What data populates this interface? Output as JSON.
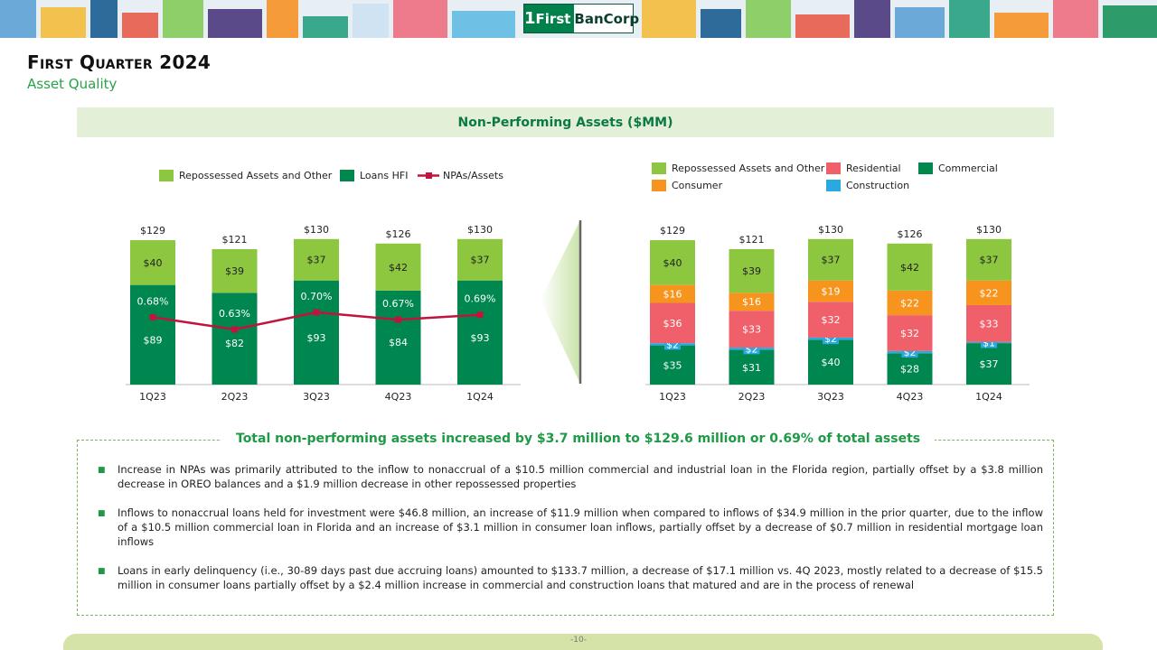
{
  "header": {
    "logo_number": "1",
    "logo_first": "First",
    "logo_bancorp": "BanCorp",
    "title": "First Quarter 2024",
    "subtitle": "Asset Quality"
  },
  "section_title": "Non-Performing Assets ($MM)",
  "colors": {
    "repossessed": "#8dc63f",
    "loans_hfi": "#00874f",
    "npa_line": "#c0143c",
    "residential": "#f0606a",
    "commercial": "#00874f",
    "consumer": "#f7941d",
    "construction": "#29a9e0",
    "accent_green": "#1e9a46"
  },
  "chart_data": [
    {
      "type": "bar",
      "stacked": true,
      "categories": [
        "1Q23",
        "2Q23",
        "3Q23",
        "4Q23",
        "1Q24"
      ],
      "series": [
        {
          "name": "Loans HFI",
          "values": [
            89,
            82,
            93,
            84,
            93
          ],
          "labels": [
            "$89",
            "$82",
            "$93",
            "$84",
            "$93"
          ]
        },
        {
          "name": "Repossessed Assets and Other",
          "values": [
            40,
            39,
            37,
            42,
            37
          ],
          "labels": [
            "$40",
            "$39",
            "$37",
            "$42",
            "$37"
          ]
        }
      ],
      "totals": [
        "$129",
        "$121",
        "$130",
        "$126",
        "$130"
      ],
      "line_series": {
        "name": "NPAs/Assets",
        "values": [
          0.68,
          0.63,
          0.7,
          0.67,
          0.69
        ],
        "labels": [
          "0.68%",
          "0.63%",
          "0.70%",
          "0.67%",
          "0.69%"
        ]
      },
      "legend": [
        "Repossessed Assets and Other",
        "Loans HFI",
        "NPAs/Assets"
      ]
    },
    {
      "type": "bar",
      "stacked": true,
      "categories": [
        "1Q23",
        "2Q23",
        "3Q23",
        "4Q23",
        "1Q24"
      ],
      "series": [
        {
          "name": "Commercial",
          "values": [
            35,
            31,
            40,
            28,
            37
          ],
          "labels": [
            "$35",
            "$31",
            "$40",
            "$28",
            "$37"
          ]
        },
        {
          "name": "Construction",
          "values": [
            2,
            2,
            2,
            2,
            1
          ],
          "labels": [
            "$2",
            "$2",
            "$2",
            "$2",
            "$1"
          ]
        },
        {
          "name": "Residential",
          "values": [
            36,
            33,
            32,
            32,
            33
          ],
          "labels": [
            "$36",
            "$33",
            "$32",
            "$32",
            "$33"
          ]
        },
        {
          "name": "Consumer",
          "values": [
            16,
            16,
            19,
            22,
            22
          ],
          "labels": [
            "$16",
            "$16",
            "$19",
            "$22",
            "$22"
          ]
        },
        {
          "name": "Repossessed Assets and Other",
          "values": [
            40,
            39,
            37,
            42,
            37
          ],
          "labels": [
            "$40",
            "$39",
            "$37",
            "$42",
            "$37"
          ]
        }
      ],
      "totals": [
        "$129",
        "$121",
        "$130",
        "$126",
        "$130"
      ],
      "legend": [
        "Repossessed Assets and Other",
        "Residential",
        "Commercial",
        "Consumer",
        "Construction"
      ]
    }
  ],
  "summary": {
    "title": "Total non-performing assets increased by $3.7 million to $129.6 million or 0.69% of total assets",
    "bullet_mark": "■",
    "bullets": [
      "Increase in NPAs was primarily attributed to the inflow to nonaccrual of a $10.5 million commercial and industrial loan in the Florida region, partially offset by a $3.8 million decrease in OREO balances and a $1.9 million decrease in other repossessed properties",
      "Inflows to nonaccrual loans held for investment were $46.8 million, an increase of $11.9 million when compared to inflows of $34.9 million in the prior quarter, due to the inflow of a $10.5 million commercial loan in Florida and an increase of $3.1 million in consumer loan inflows, partially offset by a decrease of $0.7 million in residential mortgage loan inflows",
      "Loans in early delinquency (i.e., 30-89 days past due accruing loans) amounted to $133.7 million, a decrease of $17.1 million vs. 4Q 2023, mostly related to a decrease of $15.5 million in consumer loans partially offset by a $2.4 million increase in commercial and construction loans that matured and are in the process of renewal"
    ]
  },
  "page_number": "-10-"
}
